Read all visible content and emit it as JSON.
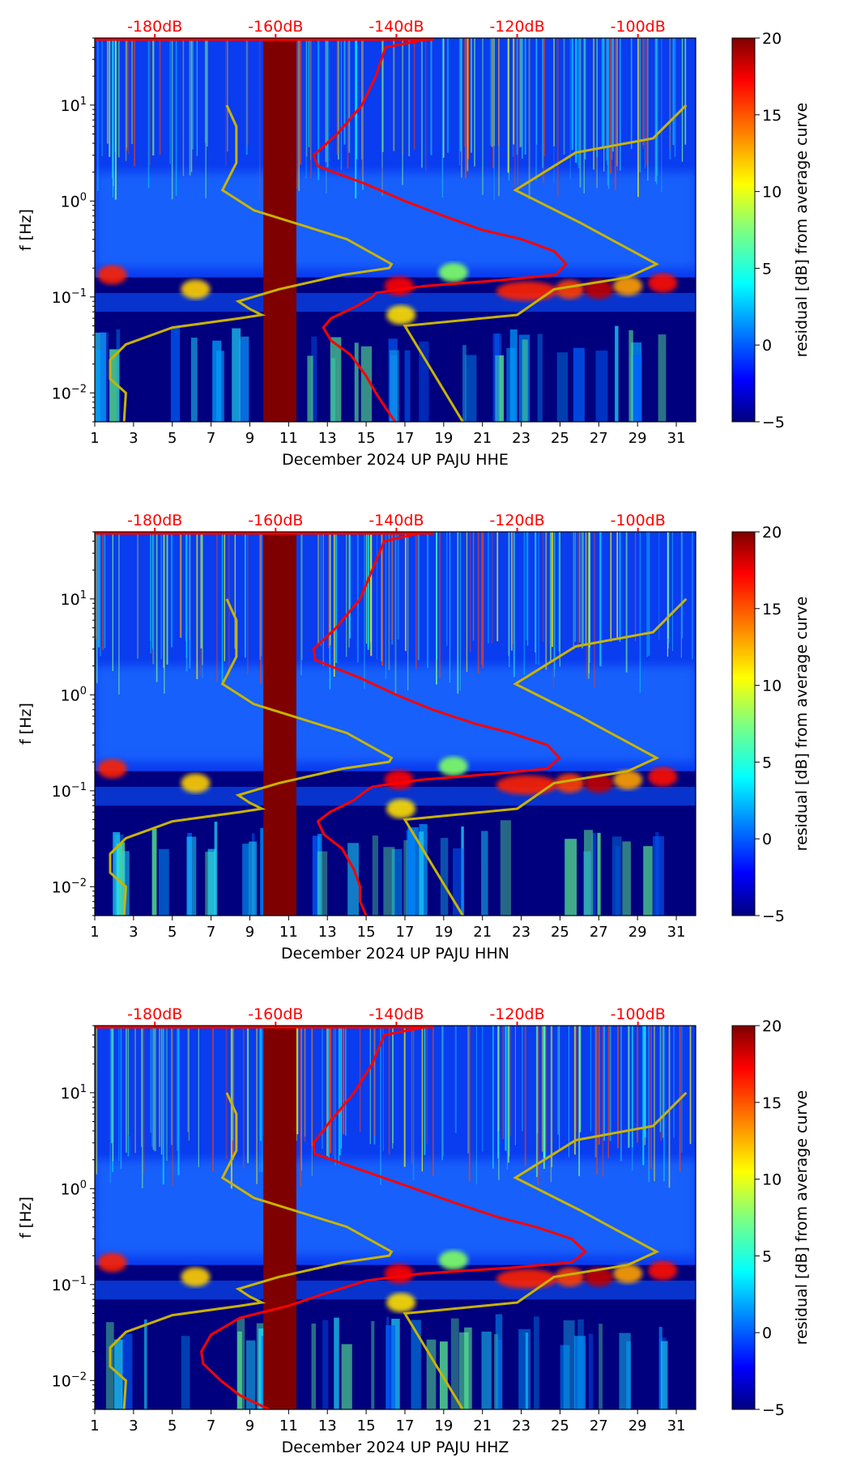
{
  "chart_data": [
    {
      "type": "heatmap",
      "title": "",
      "xlabel": "December 2024 UP PAJU  HHE",
      "ylabel": "f [Hz]",
      "xlim": [
        1,
        32
      ],
      "ylim": [
        0.005,
        50
      ],
      "yscale": "log",
      "xticks": [
        "1",
        "3",
        "5",
        "7",
        "9",
        "11",
        "13",
        "15",
        "17",
        "19",
        "21",
        "23",
        "25",
        "27",
        "29",
        "31"
      ],
      "yticks": [
        {
          "v": 0.01,
          "b": "10",
          "e": "−2"
        },
        {
          "v": 0.1,
          "b": "10",
          "e": "−1"
        },
        {
          "v": 1,
          "b": "10",
          "e": "0"
        },
        {
          "v": 10,
          "b": "10",
          "e": "1"
        }
      ],
      "top_axis": {
        "labels": [
          "-180dB",
          "-160dB",
          "-140dB",
          "-120dB",
          "-100dB"
        ],
        "values": [
          -180,
          -160,
          -140,
          -120,
          -100
        ],
        "color": "#ff0000"
      },
      "colorbar": {
        "label": "residual [dB] from average curve",
        "range": [
          -5,
          20
        ],
        "ticks": [
          "20",
          "15",
          "10",
          "5",
          "0",
          "−5"
        ],
        "colormap": "jet"
      },
      "gap_days": [
        9.7,
        11.4
      ],
      "psd_curve": {
        "color": "#ff0000",
        "points_freq_db": [
          [
            50,
            -133.8
          ],
          [
            40,
            -141.8
          ],
          [
            20,
            -143.4
          ],
          [
            10,
            -145.7
          ],
          [
            5,
            -149.8
          ],
          [
            3,
            -153.7
          ],
          [
            2.3,
            -153
          ],
          [
            1.5,
            -145
          ],
          [
            1,
            -138.6
          ],
          [
            0.7,
            -132.2
          ],
          [
            0.5,
            -125.8
          ],
          [
            0.4,
            -119.3
          ],
          [
            0.3,
            -113.9
          ],
          [
            0.22,
            -111.9
          ],
          [
            0.17,
            -113.6
          ],
          [
            0.15,
            -122.5
          ],
          [
            0.13,
            -135.4
          ],
          [
            0.11,
            -143.4
          ],
          [
            0.1,
            -144
          ],
          [
            0.08,
            -146.6
          ],
          [
            0.06,
            -150.8
          ],
          [
            0.048,
            -152.1
          ],
          [
            0.035,
            -150.8
          ],
          [
            0.025,
            -147.6
          ],
          [
            0.015,
            -145
          ],
          [
            0.01,
            -143.4
          ],
          [
            0.007,
            -141.8
          ],
          [
            0.005,
            -140.2
          ]
        ]
      },
      "noise_models": {
        "color": "#c8b400",
        "low": [
          [
            10,
            -168.1
          ],
          [
            6,
            -166.5
          ],
          [
            2.5,
            -166.5
          ],
          [
            1.3,
            -168.8
          ],
          [
            0.8,
            -163.6
          ],
          [
            0.4,
            -148.2
          ],
          [
            0.22,
            -140.8
          ],
          [
            0.2,
            -141.2
          ],
          [
            0.17,
            -148.9
          ],
          [
            0.12,
            -159.5
          ],
          [
            0.09,
            -166.2
          ],
          [
            0.075,
            -164.3
          ],
          [
            0.065,
            -162.3
          ],
          [
            0.06,
            -165.9
          ],
          [
            0.048,
            -177.1
          ],
          [
            0.032,
            -184.8
          ],
          [
            0.022,
            -187.4
          ],
          [
            0.014,
            -187.4
          ],
          [
            0.01,
            -184.8
          ],
          [
            0.005,
            -185.1
          ]
        ],
        "high": [
          [
            10,
            -92
          ],
          [
            4.5,
            -97.5
          ],
          [
            3.2,
            -110.3
          ],
          [
            1.3,
            -120.3
          ],
          [
            0.6,
            -109.7
          ],
          [
            0.22,
            -96.9
          ],
          [
            0.16,
            -101.7
          ],
          [
            0.12,
            -113.9
          ],
          [
            0.065,
            -120
          ],
          [
            0.05,
            -138.6
          ],
          [
            0.005,
            -129
          ]
        ]
      }
    },
    {
      "type": "heatmap",
      "xlabel": "December 2024 UP PAJU  HHN",
      "ylabel": "f [Hz]",
      "xlim": [
        1,
        32
      ],
      "ylim": [
        0.005,
        50
      ],
      "top_axis": {
        "labels": [
          "-180dB",
          "-160dB",
          "-140dB",
          "-120dB",
          "-100dB"
        ],
        "values": [
          -180,
          -160,
          -140,
          -120,
          -100
        ]
      },
      "colorbar": {
        "label": "residual [dB] from average curve",
        "range": [
          -5,
          20
        ],
        "ticks": [
          "20",
          "15",
          "10",
          "5",
          "0",
          "−5"
        ]
      },
      "gap_days": [
        9.7,
        11.4
      ],
      "psd_curve": {
        "points_freq_db": [
          [
            50,
            -135
          ],
          [
            40,
            -142
          ],
          [
            20,
            -144
          ],
          [
            10,
            -146
          ],
          [
            5,
            -150
          ],
          [
            3,
            -153.7
          ],
          [
            2.3,
            -153.4
          ],
          [
            1.5,
            -146
          ],
          [
            1,
            -140
          ],
          [
            0.7,
            -134
          ],
          [
            0.5,
            -127
          ],
          [
            0.4,
            -121
          ],
          [
            0.3,
            -115
          ],
          [
            0.22,
            -113
          ],
          [
            0.17,
            -115
          ],
          [
            0.15,
            -124
          ],
          [
            0.13,
            -136
          ],
          [
            0.11,
            -144
          ],
          [
            0.1,
            -145
          ],
          [
            0.08,
            -147
          ],
          [
            0.06,
            -151
          ],
          [
            0.048,
            -153
          ],
          [
            0.035,
            -152
          ],
          [
            0.025,
            -149
          ],
          [
            0.015,
            -147
          ],
          [
            0.01,
            -146
          ],
          [
            0.007,
            -146
          ],
          [
            0.005,
            -145
          ]
        ]
      }
    },
    {
      "type": "heatmap",
      "xlabel": "December 2024 UP PAJU  HHZ",
      "ylabel": "f [Hz]",
      "xlim": [
        1,
        32
      ],
      "ylim": [
        0.005,
        50
      ],
      "top_axis": {
        "labels": [
          "-180dB",
          "-160dB",
          "-140dB",
          "-120dB",
          "-100dB"
        ],
        "values": [
          -180,
          -160,
          -140,
          -120,
          -100
        ]
      },
      "colorbar": {
        "label": "residual [dB] from average curve",
        "range": [
          -5,
          20
        ],
        "ticks": [
          "20",
          "15",
          "10",
          "5",
          "0",
          "−5"
        ]
      },
      "gap_days": [
        9.7,
        11.4
      ],
      "psd_curve": {
        "points_freq_db": [
          [
            50,
            -134
          ],
          [
            40,
            -142
          ],
          [
            20,
            -144
          ],
          [
            10,
            -147
          ],
          [
            5,
            -151
          ],
          [
            3,
            -153.7
          ],
          [
            2.3,
            -153.5
          ],
          [
            1.5,
            -145
          ],
          [
            1,
            -137
          ],
          [
            0.7,
            -130
          ],
          [
            0.5,
            -123
          ],
          [
            0.4,
            -117
          ],
          [
            0.3,
            -111
          ],
          [
            0.22,
            -108.7
          ],
          [
            0.17,
            -111
          ],
          [
            0.15,
            -121
          ],
          [
            0.13,
            -136
          ],
          [
            0.11,
            -145
          ],
          [
            0.1,
            -147
          ],
          [
            0.08,
            -152
          ],
          [
            0.06,
            -157.9
          ],
          [
            0.045,
            -165.9
          ],
          [
            0.03,
            -170.7
          ],
          [
            0.02,
            -172.3
          ],
          [
            0.015,
            -172
          ],
          [
            0.01,
            -169.1
          ],
          [
            0.007,
            -165.9
          ],
          [
            0.005,
            -161.1
          ]
        ]
      }
    }
  ]
}
